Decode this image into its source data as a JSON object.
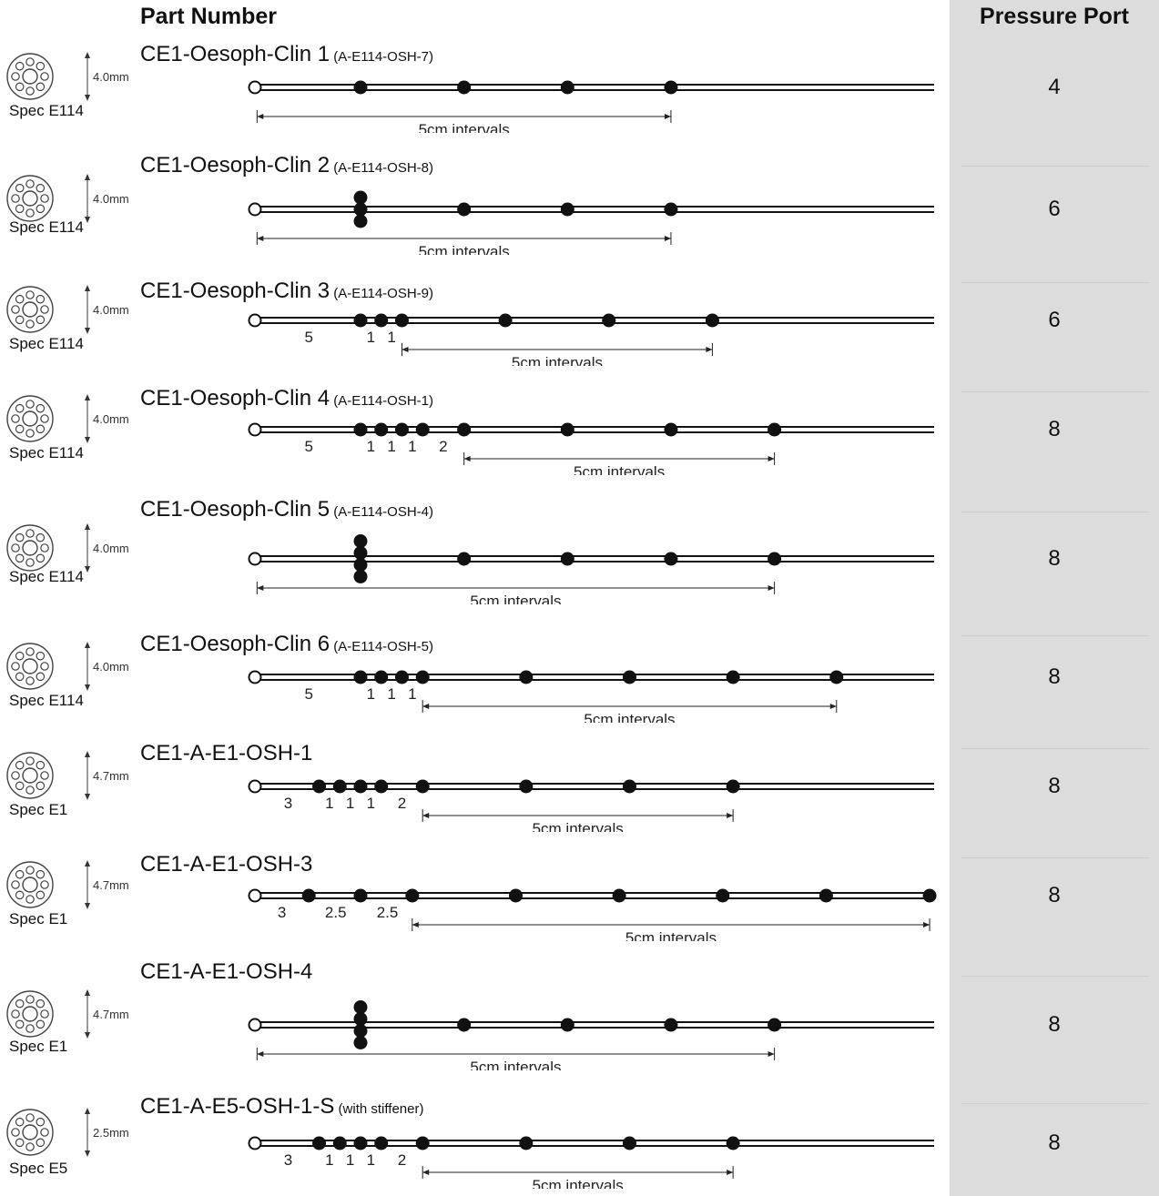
{
  "header": {
    "part_number": "Part Number",
    "pressure_port": "Pressure Port"
  },
  "rows": [
    {
      "spec": "Spec E114",
      "diameter": "4.0mm",
      "name": "CE1-Oesoph-Clin 1",
      "sub": "(A-E114-OSH-7)",
      "ports": "4",
      "sensors": [
        {
          "pos": 0,
          "count": 1
        },
        {
          "pos": 5,
          "count": 1
        },
        {
          "pos": 10,
          "count": 1
        },
        {
          "pos": 15,
          "count": 1
        }
      ],
      "spacing_labels": [],
      "interval_from": -5,
      "interval_to": 15,
      "interval_label": "5cm intervals"
    },
    {
      "spec": "Spec E114",
      "diameter": "4.0mm",
      "name": "CE1-Oesoph-Clin 2",
      "sub": "(A-E114-OSH-8)",
      "ports": "6",
      "sensors": [
        {
          "pos": 0,
          "count": 3
        },
        {
          "pos": 5,
          "count": 1
        },
        {
          "pos": 10,
          "count": 1
        },
        {
          "pos": 15,
          "count": 1
        }
      ],
      "spacing_labels": [],
      "interval_from": -5,
      "interval_to": 15,
      "interval_label": "5cm intervals"
    },
    {
      "spec": "Spec E114",
      "diameter": "4.0mm",
      "name": "CE1-Oesoph-Clin 3",
      "sub": "(A-E114-OSH-9)",
      "ports": "6",
      "sensors": [
        {
          "pos": 0,
          "count": 1
        },
        {
          "pos": 1,
          "count": 1
        },
        {
          "pos": 2,
          "count": 1
        },
        {
          "pos": 7,
          "count": 1
        },
        {
          "pos": 12,
          "count": 1
        },
        {
          "pos": 17,
          "count": 1
        }
      ],
      "spacing_labels": [
        {
          "text": "5",
          "at": -2.5
        },
        {
          "text": "1",
          "at": 0.5
        },
        {
          "text": "1",
          "at": 1.5
        }
      ],
      "interval_from": 2,
      "interval_to": 17,
      "interval_label": "5cm intervals"
    },
    {
      "spec": "Spec E114",
      "diameter": "4.0mm",
      "name": "CE1-Oesoph-Clin 4",
      "sub": "(A-E114-OSH-1)",
      "ports": "8",
      "sensors": [
        {
          "pos": 0,
          "count": 1
        },
        {
          "pos": 1,
          "count": 1
        },
        {
          "pos": 2,
          "count": 1
        },
        {
          "pos": 3,
          "count": 1
        },
        {
          "pos": 5,
          "count": 1
        },
        {
          "pos": 10,
          "count": 1
        },
        {
          "pos": 15,
          "count": 1
        },
        {
          "pos": 20,
          "count": 1
        }
      ],
      "spacing_labels": [
        {
          "text": "5",
          "at": -2.5
        },
        {
          "text": "1",
          "at": 0.5
        },
        {
          "text": "1",
          "at": 1.5
        },
        {
          "text": "1",
          "at": 2.5
        },
        {
          "text": "2",
          "at": 4
        }
      ],
      "interval_from": 5,
      "interval_to": 20,
      "interval_label": "5cm intervals"
    },
    {
      "spec": "Spec E114",
      "diameter": "4.0mm",
      "name": "CE1-Oesoph-Clin 5",
      "sub": "(A-E114-OSH-4)",
      "ports": "8",
      "sensors": [
        {
          "pos": 0,
          "count": 4
        },
        {
          "pos": 5,
          "count": 1
        },
        {
          "pos": 10,
          "count": 1
        },
        {
          "pos": 15,
          "count": 1
        },
        {
          "pos": 20,
          "count": 1
        }
      ],
      "spacing_labels": [],
      "interval_from": -5,
      "interval_to": 20,
      "interval_label": "5cm intervals"
    },
    {
      "spec": "Spec E114",
      "diameter": "4.0mm",
      "name": "CE1-Oesoph-Clin 6",
      "sub": "(A-E114-OSH-5)",
      "ports": "8",
      "sensors": [
        {
          "pos": 0,
          "count": 1
        },
        {
          "pos": 1,
          "count": 1
        },
        {
          "pos": 2,
          "count": 1
        },
        {
          "pos": 3,
          "count": 1
        },
        {
          "pos": 8,
          "count": 1
        },
        {
          "pos": 13,
          "count": 1
        },
        {
          "pos": 18,
          "count": 1
        },
        {
          "pos": 23,
          "count": 1
        }
      ],
      "spacing_labels": [
        {
          "text": "5",
          "at": -2.5
        },
        {
          "text": "1",
          "at": 0.5
        },
        {
          "text": "1",
          "at": 1.5
        },
        {
          "text": "1",
          "at": 2.5
        }
      ],
      "interval_from": 3,
      "interval_to": 23,
      "interval_label": "5cm intervals"
    },
    {
      "spec": "Spec E1",
      "diameter": "4.7mm",
      "name": "CE1-A-E1-OSH-1",
      "sub": "",
      "ports": "8",
      "sensors": [
        {
          "pos": -2,
          "count": 1
        },
        {
          "pos": -1,
          "count": 1
        },
        {
          "pos": 0,
          "count": 1
        },
        {
          "pos": 1,
          "count": 1
        },
        {
          "pos": 3,
          "count": 1
        },
        {
          "pos": 8,
          "count": 1
        },
        {
          "pos": 13,
          "count": 1
        },
        {
          "pos": 18,
          "count": 1
        }
      ],
      "spacing_labels": [
        {
          "text": "3",
          "at": -3.5
        },
        {
          "text": "1",
          "at": -1.5
        },
        {
          "text": "1",
          "at": -0.5
        },
        {
          "text": "1",
          "at": 0.5
        },
        {
          "text": "2",
          "at": 2
        }
      ],
      "interval_from": 3,
      "interval_to": 18,
      "interval_label": "5cm intervals"
    },
    {
      "spec": "Spec E1",
      "diameter": "4.7mm",
      "name": "CE1-A-E1-OSH-3",
      "sub": "",
      "ports": "8",
      "sensors": [
        {
          "pos": -2.5,
          "count": 1
        },
        {
          "pos": 0,
          "count": 1
        },
        {
          "pos": 2.5,
          "count": 1
        },
        {
          "pos": 7.5,
          "count": 1
        },
        {
          "pos": 12.5,
          "count": 1
        },
        {
          "pos": 17.5,
          "count": 1
        },
        {
          "pos": 22.5,
          "count": 1
        },
        {
          "pos": 27.5,
          "count": 1
        }
      ],
      "spacing_labels": [
        {
          "text": "3",
          "at": -3.8
        },
        {
          "text": "2.5",
          "at": -1.2
        },
        {
          "text": "2.5",
          "at": 1.3
        }
      ],
      "interval_from": 2.5,
      "interval_to": 27.5,
      "interval_label": "5cm intervals"
    },
    {
      "spec": "Spec E1",
      "diameter": "4.7mm",
      "name": "CE1-A-E1-OSH-4",
      "sub": "",
      "ports": "8",
      "sensors": [
        {
          "pos": 0,
          "count": 4
        },
        {
          "pos": 5,
          "count": 1
        },
        {
          "pos": 10,
          "count": 1
        },
        {
          "pos": 15,
          "count": 1
        },
        {
          "pos": 20,
          "count": 1
        }
      ],
      "spacing_labels": [],
      "interval_from": -5,
      "interval_to": 20,
      "interval_label": "5cm intervals"
    },
    {
      "spec": "Spec E5",
      "diameter": "2.5mm",
      "name": "CE1-A-E5-OSH-1-S",
      "sub": "(with stiffener)",
      "ports": "8",
      "sensors": [
        {
          "pos": -2,
          "count": 1
        },
        {
          "pos": -1,
          "count": 1
        },
        {
          "pos": 0,
          "count": 1
        },
        {
          "pos": 1,
          "count": 1
        },
        {
          "pos": 3,
          "count": 1
        },
        {
          "pos": 8,
          "count": 1
        },
        {
          "pos": 13,
          "count": 1
        },
        {
          "pos": 18,
          "count": 1
        }
      ],
      "spacing_labels": [
        {
          "text": "3",
          "at": -3.5
        },
        {
          "text": "1",
          "at": -1.5
        },
        {
          "text": "1",
          "at": -0.5
        },
        {
          "text": "1",
          "at": 0.5
        },
        {
          "text": "2",
          "at": 2
        }
      ],
      "interval_from": 3,
      "interval_to": 18,
      "interval_label": "5cm intervals"
    }
  ]
}
